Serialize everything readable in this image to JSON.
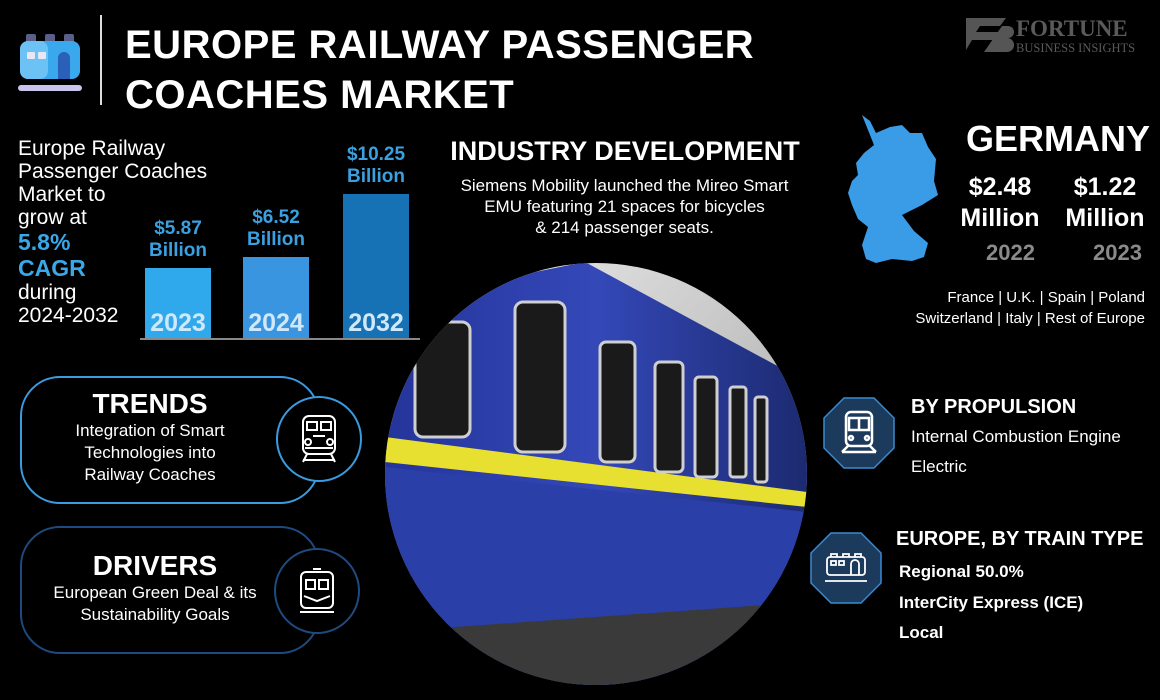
{
  "header": {
    "title_line1": "EUROPE RAILWAY PASSENGER",
    "title_line2": "COACHES MARKET",
    "logo_text": "FORTUNE BUSINESS INSIGHTS"
  },
  "intro": {
    "line1": "Europe Railway",
    "line2": "Passenger Coaches",
    "line3": "Market to",
    "line4": "grow at",
    "cagr": "5.8%",
    "cagr_label": "CAGR",
    "line5": "during",
    "period": "2024-2032"
  },
  "chart_data": {
    "type": "bar",
    "categories": [
      "2023",
      "2024",
      "2032"
    ],
    "values": [
      5.87,
      6.52,
      10.25
    ],
    "value_labels": [
      [
        "$5.87",
        "Billion"
      ],
      [
        "$6.52",
        "Billion"
      ],
      [
        "$10.25",
        "Billion"
      ]
    ],
    "unit": "Billion",
    "colors": [
      "#2fa8ec",
      "#3a95e0",
      "#1672b4"
    ]
  },
  "industry": {
    "title": "INDUSTRY DEVELOPMENT",
    "text_line1": "Siemens Mobility launched the Mireo Smart",
    "text_line2": "EMU featuring 21 spaces for bicycles",
    "text_line3": "& 214 passenger seats."
  },
  "germany": {
    "title": "GERMANY",
    "values": [
      {
        "amount": "$2.48",
        "unit": "Million",
        "year": "2022"
      },
      {
        "amount": "$1.22",
        "unit": "Million",
        "year": "2023"
      }
    ],
    "map_color": "#3a9be6"
  },
  "countries": {
    "line1": "France  |  U.K.  |  Spain  |  Poland",
    "line2": "Switzerland  |  Italy  |  Rest of Europe"
  },
  "trends": {
    "title": "TRENDS",
    "line1": "Integration of Smart",
    "line2": "Technologies into",
    "line3": "Railway Coaches",
    "icon": "train-front-icon"
  },
  "drivers": {
    "title": "DRIVERS",
    "line1": "European Green Deal & its",
    "line2": "Sustainability Goals",
    "icon": "metro-front-icon"
  },
  "propulsion": {
    "title": "BY PROPULSION",
    "items": [
      "Internal Combustion Engine",
      "Electric"
    ],
    "icon": "train-icon"
  },
  "train_type": {
    "title": "EUROPE, BY TRAIN TYPE",
    "items": [
      "Regional 50.0%",
      "InterCity Express (ICE)",
      "Local"
    ],
    "icon": "coach-icon"
  },
  "colors": {
    "accent": "#3aa8e8",
    "dark_box": "#1b3a5c",
    "border_light": "#3a9be0",
    "border_dark": "#1e4a80"
  }
}
